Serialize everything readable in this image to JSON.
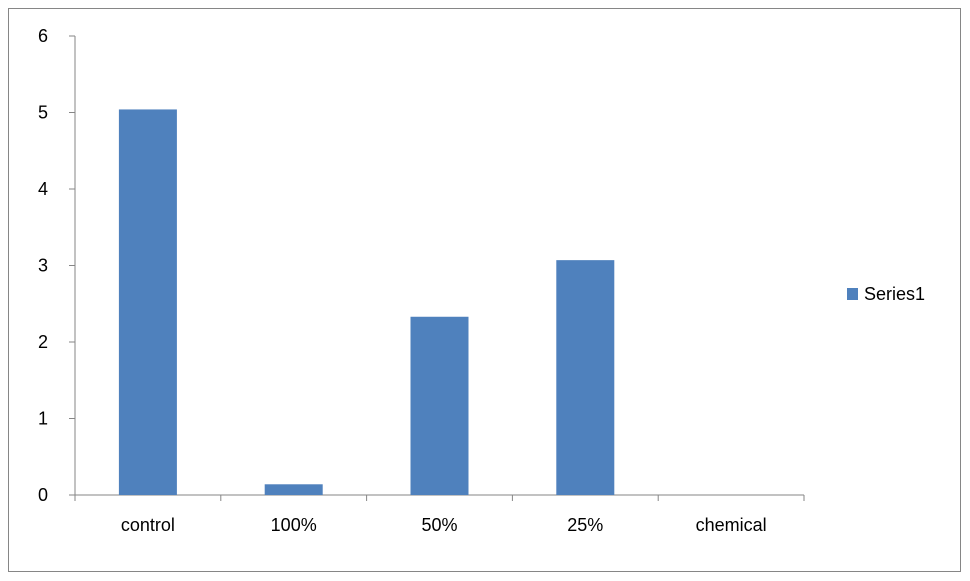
{
  "chart_data": {
    "type": "bar",
    "categories": [
      "control",
      "100%",
      "50%",
      "25%",
      "chemical"
    ],
    "series": [
      {
        "name": "Series1",
        "values": [
          5.04,
          0.14,
          2.33,
          3.07,
          0
        ]
      }
    ],
    "title": "",
    "xlabel": "",
    "ylabel": "",
    "ylim": [
      0,
      6
    ],
    "yticks": [
      "0",
      "1",
      "2",
      "3",
      "4",
      "5",
      "6"
    ],
    "grid": false,
    "legend_position": "right",
    "bar_color": "#4F81BD"
  }
}
